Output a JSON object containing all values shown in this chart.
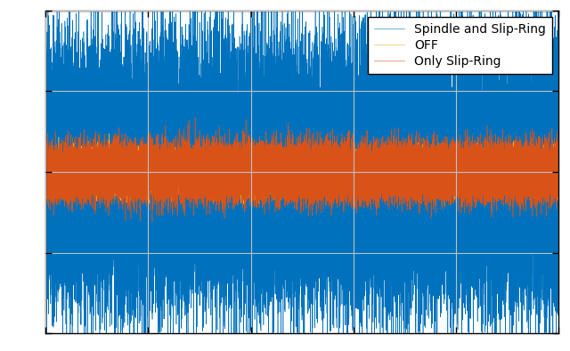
{
  "title": "",
  "xlabel": "",
  "ylabel": "",
  "legend_labels": [
    "Spindle and Slip-Ring",
    "Only Slip-Ring",
    "OFF"
  ],
  "line_colors": [
    "#0072BD",
    "#D95319",
    "#EDB120"
  ],
  "n_samples": 50000,
  "spindle_std": 0.55,
  "slipring_std": 0.12,
  "off_std": 0.08,
  "ylim": [
    -1.5,
    1.5
  ],
  "xlim_start": 0,
  "grid_color": "#C0C0C0",
  "linewidth": 0.4,
  "background_color": "#FFFFFF",
  "figure_facecolor": "#FFFFFF",
  "n_xticks": 5,
  "n_yticks": 5
}
